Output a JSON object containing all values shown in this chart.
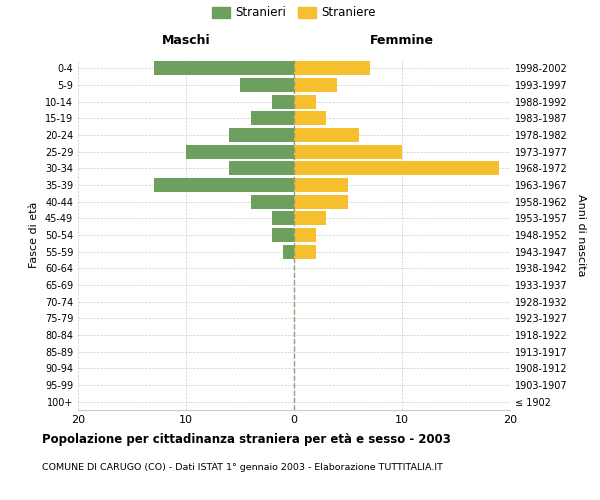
{
  "age_groups": [
    "100+",
    "95-99",
    "90-94",
    "85-89",
    "80-84",
    "75-79",
    "70-74",
    "65-69",
    "60-64",
    "55-59",
    "50-54",
    "45-49",
    "40-44",
    "35-39",
    "30-34",
    "25-29",
    "20-24",
    "15-19",
    "10-14",
    "5-9",
    "0-4"
  ],
  "birth_years": [
    "≤ 1902",
    "1903-1907",
    "1908-1912",
    "1913-1917",
    "1918-1922",
    "1923-1927",
    "1928-1932",
    "1933-1937",
    "1938-1942",
    "1943-1947",
    "1948-1952",
    "1953-1957",
    "1958-1962",
    "1963-1967",
    "1968-1972",
    "1973-1977",
    "1978-1982",
    "1983-1987",
    "1988-1992",
    "1993-1997",
    "1998-2002"
  ],
  "males": [
    0,
    0,
    0,
    0,
    0,
    0,
    0,
    0,
    0,
    1,
    2,
    2,
    4,
    13,
    6,
    10,
    6,
    4,
    2,
    5,
    13
  ],
  "females": [
    0,
    0,
    0,
    0,
    0,
    0,
    0,
    0,
    0,
    2,
    2,
    3,
    5,
    5,
    19,
    10,
    6,
    3,
    2,
    4,
    7
  ],
  "male_color": "#6d9f5e",
  "female_color": "#f5bf2e",
  "male_label": "Stranieri",
  "female_label": "Straniere",
  "title": "Popolazione per cittadinanza straniera per età e sesso - 2003",
  "subtitle": "COMUNE DI CARUGO (CO) - Dati ISTAT 1° gennaio 2003 - Elaborazione TUTTITALIA.IT",
  "xlabel_left": "Maschi",
  "xlabel_right": "Femmine",
  "ylabel_left": "Fasce di età",
  "ylabel_right": "Anni di nascita",
  "xlim": 20,
  "bg_color": "#ffffff",
  "grid_color": "#cccccc"
}
